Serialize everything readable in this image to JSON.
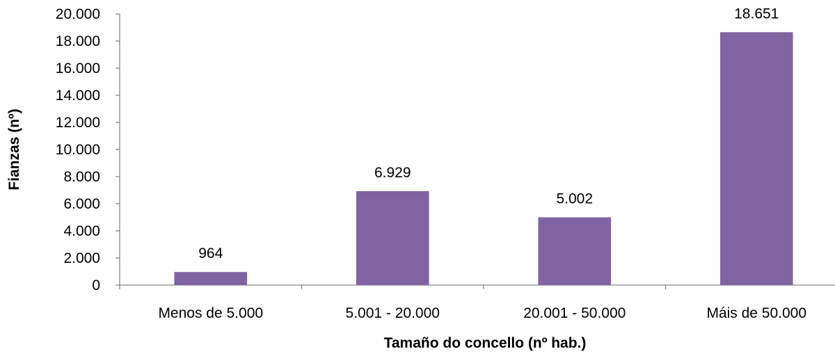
{
  "chart_data": {
    "type": "bar",
    "xlabel": "Tamaño do concello (nº hab.)",
    "ylabel": "Fianzas (nº)",
    "categories": [
      "Menos de 5.000",
      "5.001 - 20.000",
      "20.001 - 50.000",
      "Máis de 50.000"
    ],
    "values": [
      964,
      6929,
      5002,
      18651
    ],
    "value_labels": [
      "964",
      "6.929",
      "5.002",
      "18.651"
    ],
    "ylim": [
      0,
      20000
    ],
    "yticks": [
      0,
      2000,
      4000,
      6000,
      8000,
      10000,
      12000,
      14000,
      16000,
      18000,
      20000
    ],
    "ytick_labels": [
      "0",
      "2.000",
      "4.000",
      "6.000",
      "8.000",
      "10.000",
      "12.000",
      "14.000",
      "16.000",
      "18.000",
      "20.000"
    ],
    "grid": false,
    "legend": "none",
    "colors": {
      "bar": "#8064A2",
      "axis": "#868686"
    }
  }
}
